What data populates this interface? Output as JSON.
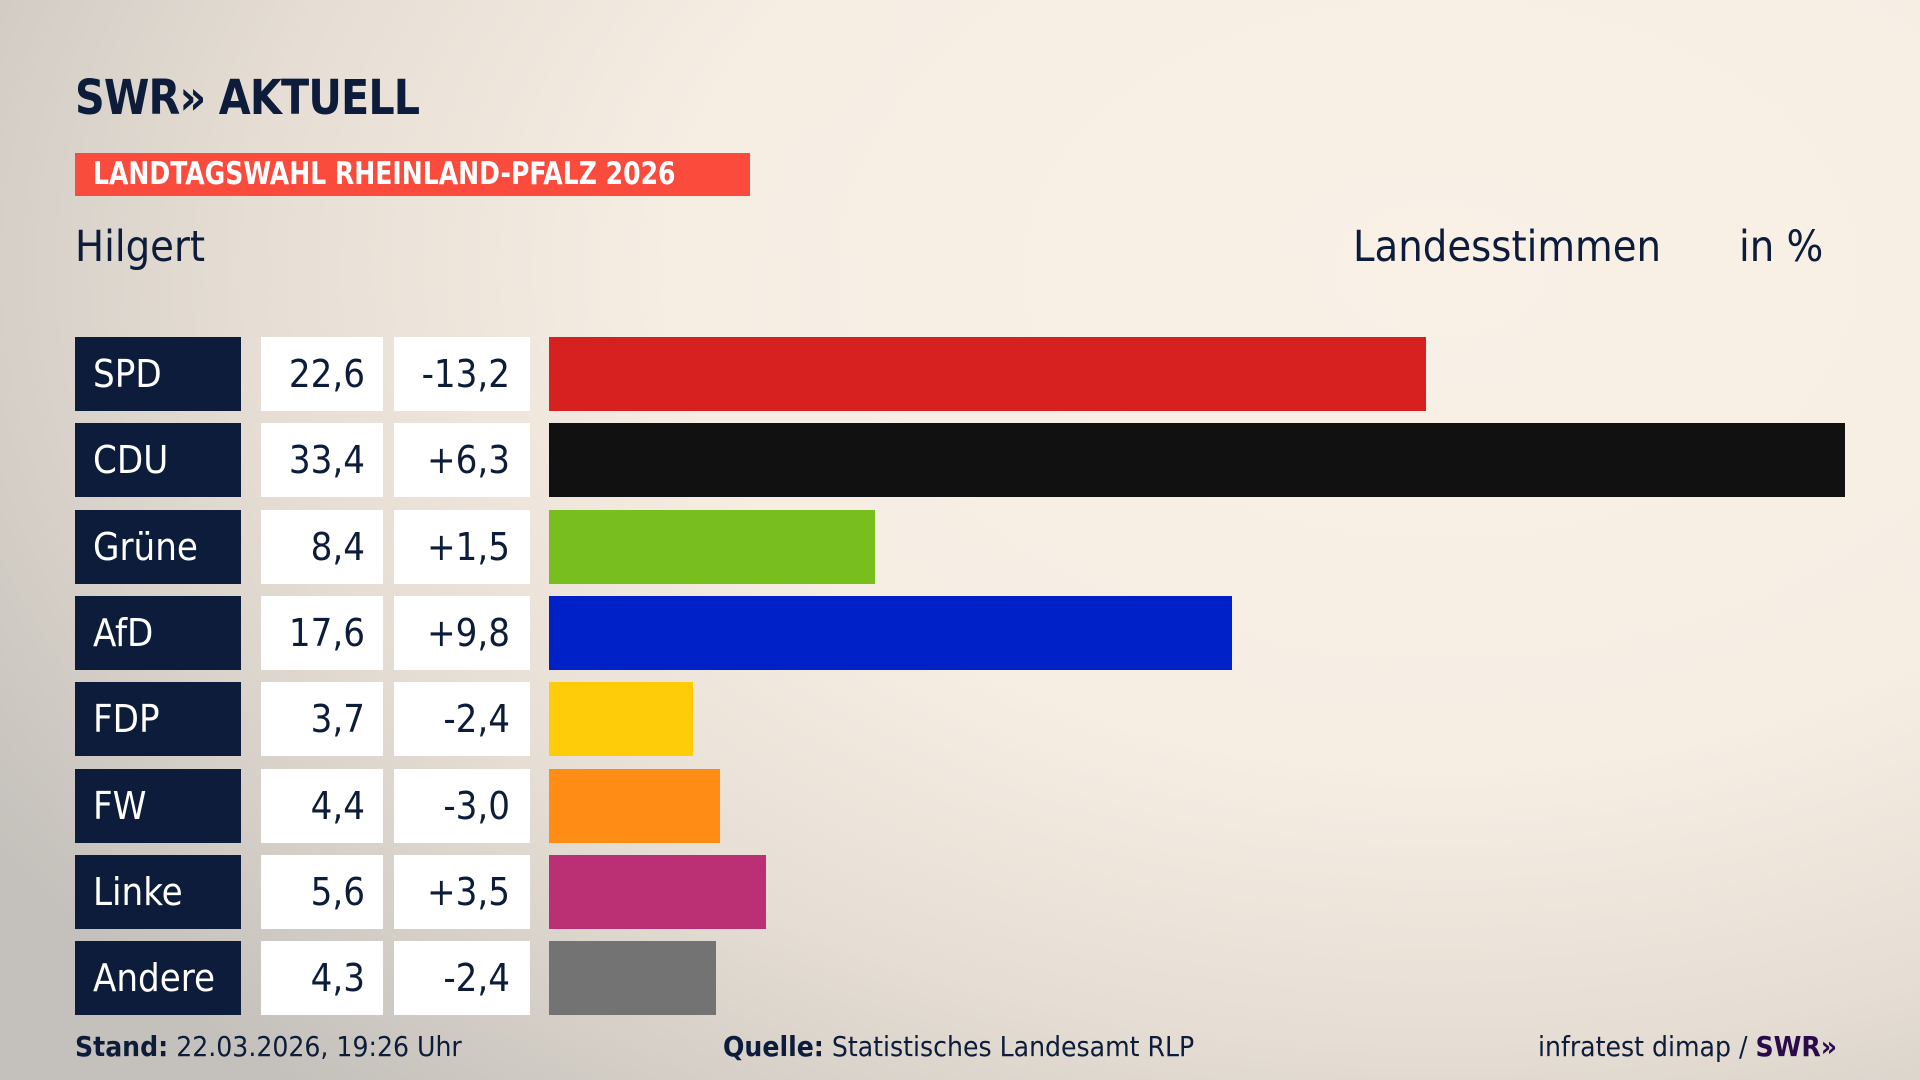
{
  "logo": {
    "brand": "SWR",
    "chevrons": "»",
    "name": "AKTUELL"
  },
  "banner": "LANDTAGSWAHL RHEINLAND-PFALZ 2026",
  "place": "Hilgert",
  "header": {
    "type": "Landesstimmen",
    "unit": "in %"
  },
  "chart_data": {
    "type": "bar",
    "orientation": "horizontal",
    "categories": [
      "SPD",
      "CDU",
      "Grüne",
      "AfD",
      "FDP",
      "FW",
      "Linke",
      "Andere"
    ],
    "values": [
      22.6,
      33.4,
      8.4,
      17.6,
      3.7,
      4.4,
      5.6,
      4.3
    ],
    "value_labels": [
      "22,6",
      "33,4",
      "8,4",
      "17,6",
      "3,7",
      "4,4",
      "5,6",
      "4,3"
    ],
    "diff_labels": [
      "-13,2",
      "+6,3",
      "+1,5",
      "+9,8",
      "-2,4",
      "-3,0",
      "+3,5",
      "-2,4"
    ],
    "diffs": [
      -13.2,
      6.3,
      1.5,
      9.8,
      -2.4,
      -3.0,
      3.5,
      -2.4
    ],
    "colors": [
      "#d72020",
      "#111111",
      "#78be1e",
      "#0020c8",
      "#ffcc0a",
      "#ff8c14",
      "#bb2f74",
      "#737373"
    ],
    "xlim": [
      0,
      33.4
    ],
    "grid": false
  },
  "footer": {
    "stand_label": "Stand:",
    "stand_value": "22.03.2026, 19:26 Uhr",
    "source_label": "Quelle:",
    "source_value": "Statistisches Landesamt RLP",
    "credit": "infratest dimap /",
    "credit_brand": "SWR»"
  }
}
